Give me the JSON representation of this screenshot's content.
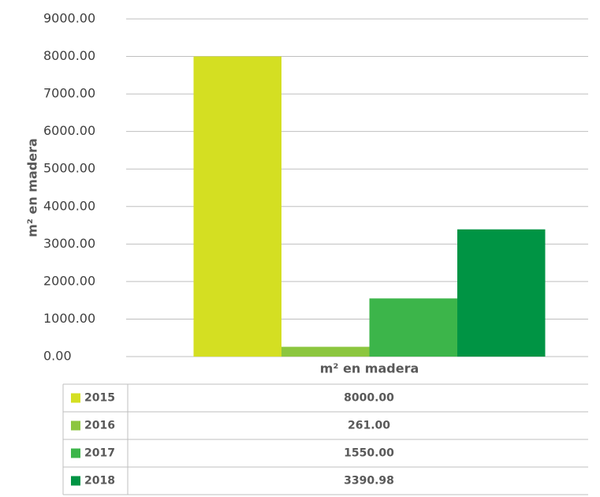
{
  "chart_data": {
    "type": "bar",
    "y_label": "m² en madera",
    "categories": [
      "m² en madera"
    ],
    "series": [
      {
        "name": "2015",
        "color": "#d4df22",
        "values": [
          8000
        ],
        "value_labels": [
          "8000.00"
        ]
      },
      {
        "name": "2016",
        "color": "#8cc63f",
        "values": [
          261
        ],
        "value_labels": [
          "261.00"
        ]
      },
      {
        "name": "2017",
        "color": "#3cb54a",
        "values": [
          1550
        ],
        "value_labels": [
          "1550.00"
        ]
      },
      {
        "name": "2018",
        "color": "#009444",
        "values": [
          3390.98
        ],
        "value_labels": [
          "3390.98"
        ]
      }
    ],
    "ylim": [
      0,
      9000
    ],
    "yticks": [
      {
        "value": 0,
        "label": "0.00"
      },
      {
        "value": 1000,
        "label": "1000.00"
      },
      {
        "value": 2000,
        "label": "2000.00"
      },
      {
        "value": 3000,
        "label": "3000.00"
      },
      {
        "value": 4000,
        "label": "4000.00"
      },
      {
        "value": 5000,
        "label": "5000.00"
      },
      {
        "value": 6000,
        "label": "6000.00"
      },
      {
        "value": 7000,
        "label": "7000.00"
      },
      {
        "value": 8000,
        "label": "8000.00"
      },
      {
        "value": 9000,
        "label": "9000.00"
      }
    ],
    "grid": true
  }
}
